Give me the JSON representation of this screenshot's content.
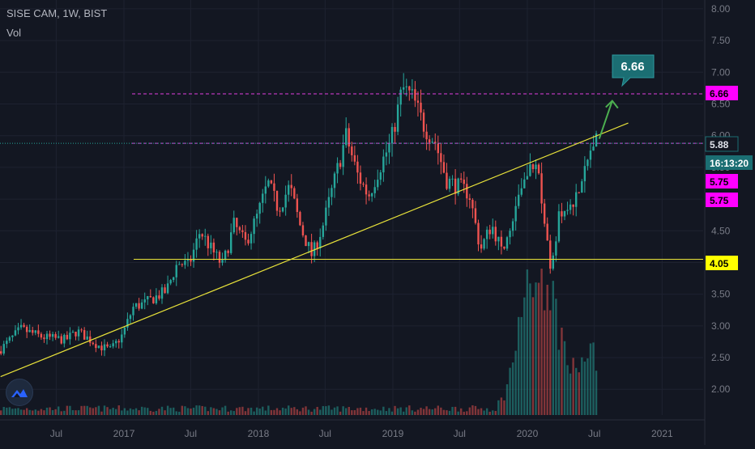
{
  "header": {
    "symbol_line": "SISE CAM, 1W, BIST",
    "volume_label": "Vol"
  },
  "chart_data": {
    "type": "candlestick",
    "title": "SISE CAM, 1W, BIST",
    "y_axis": {
      "min": 1.85,
      "max": 8.05,
      "ticks": [
        "8.00",
        "7.50",
        "7.00",
        "6.50",
        "6.00",
        "5.50",
        "5.00",
        "4.50",
        "4.00",
        "3.50",
        "3.00",
        "2.50",
        "2.00"
      ]
    },
    "x_axis": {
      "ticks": [
        {
          "label": "Jul",
          "date": "2016-07"
        },
        {
          "label": "2017",
          "date": "2017-01"
        },
        {
          "label": "Jul",
          "date": "2017-07"
        },
        {
          "label": "2018",
          "date": "2018-01"
        },
        {
          "label": "Jul",
          "date": "2018-07"
        },
        {
          "label": "2019",
          "date": "2019-01"
        },
        {
          "label": "Jul",
          "date": "2019-07"
        },
        {
          "label": "2020",
          "date": "2020-01"
        },
        {
          "label": "Jul",
          "date": "2020-07"
        },
        {
          "label": "2021",
          "date": "2021-01"
        }
      ]
    },
    "price_path": [
      {
        "date": "2016-02",
        "price": 2.6
      },
      {
        "date": "2016-04",
        "price": 2.95
      },
      {
        "date": "2016-06",
        "price": 2.82
      },
      {
        "date": "2016-08",
        "price": 2.78
      },
      {
        "date": "2016-09",
        "price": 2.92
      },
      {
        "date": "2016-11",
        "price": 2.68
      },
      {
        "date": "2016-12",
        "price": 2.62
      },
      {
        "date": "2017-01",
        "price": 2.85
      },
      {
        "date": "2017-02",
        "price": 3.3
      },
      {
        "date": "2017-03",
        "price": 3.35
      },
      {
        "date": "2017-05",
        "price": 3.55
      },
      {
        "date": "2017-06",
        "price": 4.0
      },
      {
        "date": "2017-07",
        "price": 3.95
      },
      {
        "date": "2017-08",
        "price": 4.5
      },
      {
        "date": "2017-09",
        "price": 4.2
      },
      {
        "date": "2017-10",
        "price": 3.95
      },
      {
        "date": "2017-11",
        "price": 4.6
      },
      {
        "date": "2017-12",
        "price": 4.3
      },
      {
        "date": "2018-01",
        "price": 4.7
      },
      {
        "date": "2018-02",
        "price": 5.25
      },
      {
        "date": "2018-03",
        "price": 4.85
      },
      {
        "date": "2018-04",
        "price": 5.2
      },
      {
        "date": "2018-05",
        "price": 4.55
      },
      {
        "date": "2018-06",
        "price": 4.1
      },
      {
        "date": "2018-07",
        "price": 4.6
      },
      {
        "date": "2018-08",
        "price": 5.3
      },
      {
        "date": "2018-09",
        "price": 6.0
      },
      {
        "date": "2018-10",
        "price": 5.4
      },
      {
        "date": "2018-11",
        "price": 5.05
      },
      {
        "date": "2018-12",
        "price": 5.5
      },
      {
        "date": "2019-01",
        "price": 5.9
      },
      {
        "date": "2019-02",
        "price": 6.75
      },
      {
        "date": "2019-03",
        "price": 6.6
      },
      {
        "date": "2019-04",
        "price": 6.15
      },
      {
        "date": "2019-05",
        "price": 5.9
      },
      {
        "date": "2019-06",
        "price": 5.3
      },
      {
        "date": "2019-07",
        "price": 5.2
      },
      {
        "date": "2019-08",
        "price": 5.1
      },
      {
        "date": "2019-09",
        "price": 4.2
      },
      {
        "date": "2019-10",
        "price": 4.6
      },
      {
        "date": "2019-11",
        "price": 4.15
      },
      {
        "date": "2019-12",
        "price": 4.8
      },
      {
        "date": "2020-01",
        "price": 5.3
      },
      {
        "date": "2020-02",
        "price": 5.6
      },
      {
        "date": "2020-03",
        "price": 4.3
      },
      {
        "date": "2020-03",
        "price": 3.6
      },
      {
        "date": "2020-04",
        "price": 4.7
      },
      {
        "date": "2020-05",
        "price": 4.9
      },
      {
        "date": "2020-06",
        "price": 5.2
      },
      {
        "date": "2020-07",
        "price": 5.88
      }
    ],
    "volume_peak_dates": [
      "2020-01",
      "2020-02",
      "2020-03",
      "2020-07"
    ],
    "annotations": {
      "horizontal_lines": [
        {
          "price": 6.66,
          "style": "dashed",
          "color": "#e03ee0",
          "label": "6.66"
        },
        {
          "price": 5.88,
          "style": "dashed",
          "color": "#e03ee0",
          "label": "5.88"
        },
        {
          "price": 4.05,
          "style": "solid",
          "color": "#e8e23a",
          "label": "4.05"
        }
      ],
      "trendline": {
        "from": {
          "date": "2016-02",
          "price": 2.2
        },
        "to": {
          "date": "2020-10",
          "price": 6.2
        },
        "color": "#e8e23a"
      },
      "arrow": {
        "from": {
          "date": "2020-07",
          "price": 5.95
        },
        "to": {
          "date": "2020-08",
          "price": 6.55
        },
        "color": "#4caf50"
      },
      "callout": {
        "text": "6.66",
        "color": "#1b6e73"
      }
    },
    "price_labels": [
      {
        "text": "6.66",
        "bg": "#ff00ff",
        "fg": "#000000"
      },
      {
        "text": "5.88",
        "bg": "#131722",
        "fg": "#e0e3eb",
        "border": "#1b6e73"
      },
      {
        "text": "16:13:20",
        "bg": "#1b6e73",
        "fg": "#ffffff"
      },
      {
        "text": "5.75",
        "bg": "#ff00ff",
        "fg": "#000000"
      },
      {
        "text": "5.75",
        "bg": "#ff00ff",
        "fg": "#000000"
      },
      {
        "text": "4.05",
        "bg": "#ffff00",
        "fg": "#000000"
      }
    ],
    "colors": {
      "up": "#26a69a",
      "down": "#ef5350",
      "background": "#131722",
      "grid": "#1e2230"
    }
  }
}
